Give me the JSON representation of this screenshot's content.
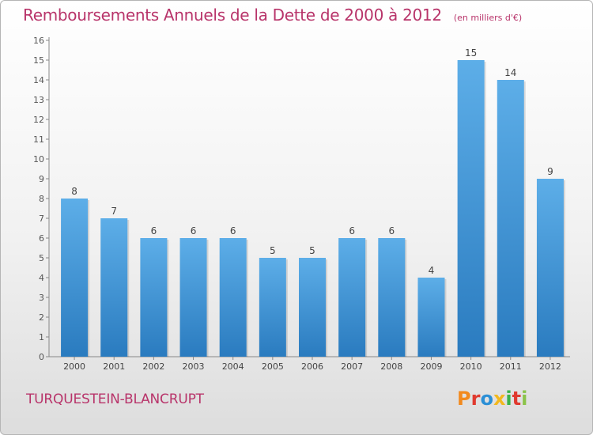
{
  "header": {
    "title": "Remboursements Annuels de la Dette de 2000 à 2012",
    "unit": "(en milliers d'€)"
  },
  "footer": {
    "city": "TURQUESTEIN-BLANCRUPT",
    "logo": "Proxiti",
    "logo_colors": [
      "#f28a1e",
      "#e03a2f",
      "#2b8fd6",
      "#f2b81e",
      "#3ab34a",
      "#e03a2f",
      "#8bc34a"
    ]
  },
  "chart_data": {
    "type": "bar",
    "title": "Remboursements Annuels de la Dette de 2000 à 2012",
    "subtitle": "(en milliers d'€)",
    "categories": [
      "2000",
      "2001",
      "2002",
      "2003",
      "2004",
      "2005",
      "2006",
      "2007",
      "2008",
      "2009",
      "2010",
      "2011",
      "2012"
    ],
    "values": [
      8,
      7,
      6,
      6,
      6,
      5,
      5,
      6,
      6,
      4,
      15,
      14,
      9
    ],
    "ylim": [
      0,
      16
    ],
    "yticks": [
      0,
      1,
      2,
      3,
      4,
      5,
      6,
      7,
      8,
      9,
      10,
      11,
      12,
      13,
      14,
      15,
      16
    ],
    "bar_color_top": "#5daee8",
    "bar_color_bottom": "#2a7bbf",
    "grid": false,
    "data_labels": true
  }
}
